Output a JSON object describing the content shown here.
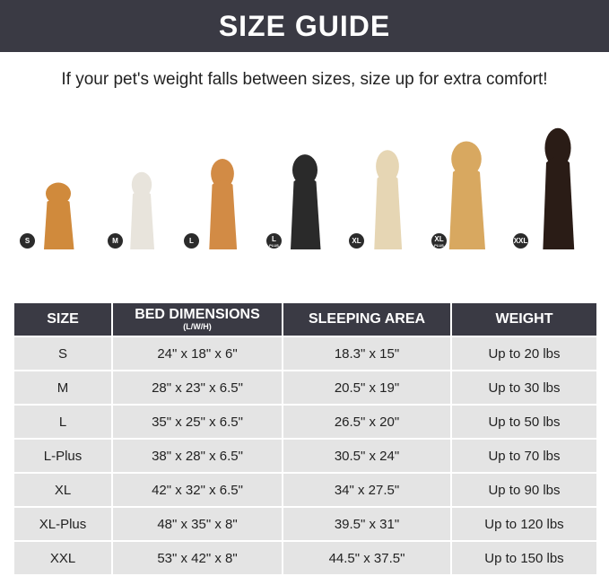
{
  "title": "SIZE GUIDE",
  "subtitle": "If your pet's weight falls between sizes, size up for extra comfort!",
  "dogs": [
    {
      "badge": "S",
      "badge_sub": "",
      "color": "#d08a3c"
    },
    {
      "badge": "M",
      "badge_sub": "",
      "color": "#e8e4dc"
    },
    {
      "badge": "L",
      "badge_sub": "",
      "color": "#d28b45"
    },
    {
      "badge": "L",
      "badge_sub": "PLUS",
      "color": "#2a2a2a"
    },
    {
      "badge": "XL",
      "badge_sub": "",
      "color": "#e6d6b4"
    },
    {
      "badge": "XL",
      "badge_sub": "PLUS",
      "color": "#d8a860"
    },
    {
      "badge": "XXL",
      "badge_sub": "",
      "color": "#2a1c16"
    }
  ],
  "table": {
    "headers": [
      "SIZE",
      "BED DIMENSIONS",
      "SLEEPING AREA",
      "WEIGHT"
    ],
    "header_sub": "(L/W/H)",
    "rows": [
      [
        "S",
        "24\" x 18\" x 6\"",
        "18.3\" x 15\"",
        "Up to 20 lbs"
      ],
      [
        "M",
        "28\" x 23\" x 6.5\"",
        "20.5\" x 19\"",
        "Up to 30 lbs"
      ],
      [
        "L",
        "35\" x 25\" x 6.5\"",
        "26.5\" x 20\"",
        "Up to 50 lbs"
      ],
      [
        "L-Plus",
        "38\" x 28\" x 6.5\"",
        "30.5\" x 24\"",
        "Up to 70 lbs"
      ],
      [
        "XL",
        "42\" x 32\" x 6.5\"",
        "34\" x 27.5\"",
        "Up to 90 lbs"
      ],
      [
        "XL-Plus",
        "48\" x 35\" x 8\"",
        "39.5\" x 31\"",
        "Up to 120 lbs"
      ],
      [
        "XXL",
        "53\" x 42\" x 8\"",
        "44.5\" x 37.5\"",
        "Up to 150 lbs"
      ]
    ]
  }
}
